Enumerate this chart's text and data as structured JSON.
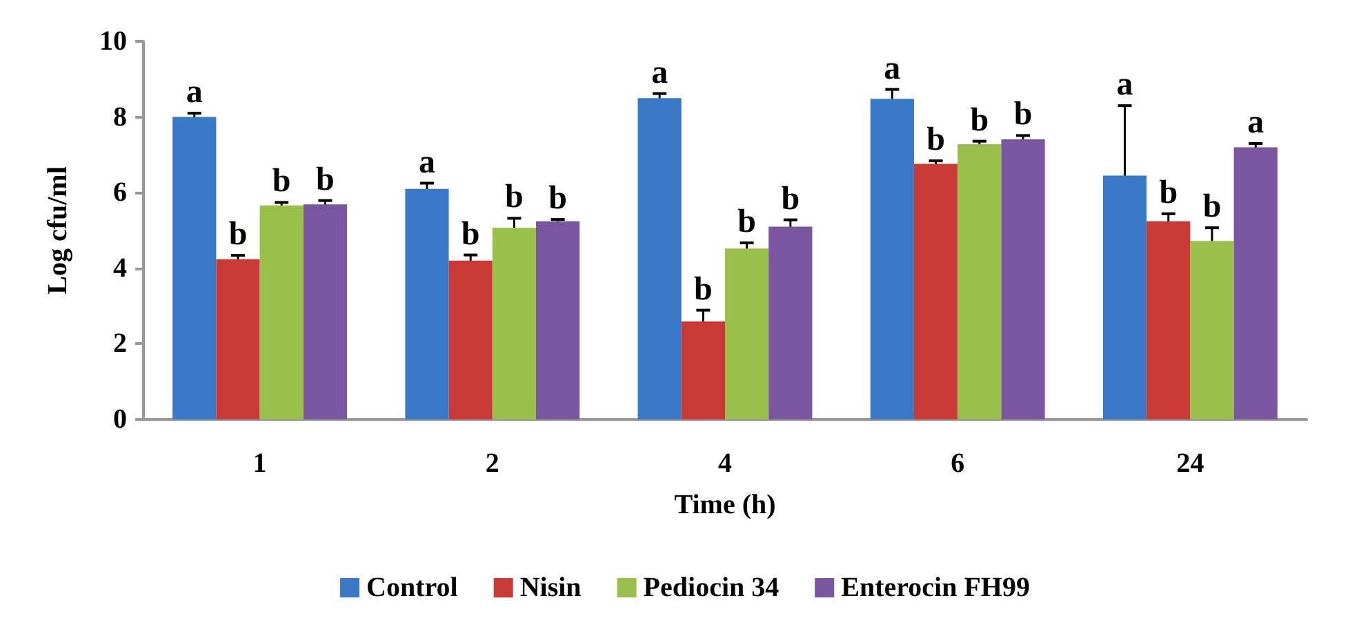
{
  "chart_data": {
    "type": "bar",
    "xlabel": "Time (h)",
    "ylabel": "Log cfu/ml",
    "categories": [
      "1",
      "2",
      "4",
      "6",
      "24"
    ],
    "ylim": [
      0,
      10
    ],
    "yticks": [
      0,
      2,
      4,
      6,
      8,
      10
    ],
    "grid": false,
    "legend": "bottom",
    "series": [
      {
        "name": "Control",
        "color": "#3a78c8",
        "values": [
          8.0,
          6.1,
          8.5,
          8.48,
          6.45
        ],
        "errors": [
          0.1,
          0.15,
          0.12,
          0.25,
          1.85
        ],
        "value_labels": [
          "a",
          "a",
          "a",
          "a",
          "a"
        ]
      },
      {
        "name": "Nisin",
        "color": "#c93a36",
        "values": [
          4.24,
          4.2,
          2.59,
          6.76,
          5.24
        ],
        "errors": [
          0.1,
          0.15,
          0.3,
          0.08,
          0.2
        ],
        "value_labels": [
          "b",
          "b",
          "b",
          "b",
          "b"
        ]
      },
      {
        "name": "Pediocin 34",
        "color": "#98c04a",
        "values": [
          5.66,
          5.07,
          4.52,
          7.28,
          4.72
        ],
        "errors": [
          0.08,
          0.25,
          0.15,
          0.08,
          0.35
        ],
        "value_labels": [
          "b",
          "b",
          "b",
          "b",
          "b"
        ]
      },
      {
        "name": "Enterocin FH99",
        "color": "#7a55a0",
        "values": [
          5.69,
          5.24,
          5.1,
          7.41,
          7.2
        ],
        "errors": [
          0.1,
          0.05,
          0.18,
          0.1,
          0.1
        ],
        "value_labels": [
          "b",
          "b",
          "b",
          "b",
          "a"
        ]
      }
    ]
  }
}
